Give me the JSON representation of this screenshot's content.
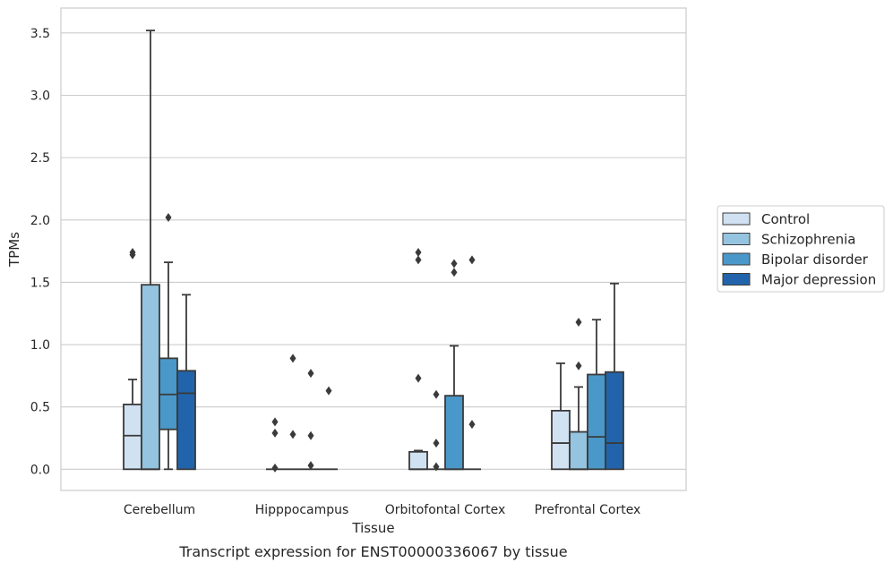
{
  "chart_data": {
    "type": "box",
    "title": "",
    "caption": "Transcript expression for ENST00000336067 by tissue",
    "xlabel": "Tissue",
    "ylabel": "TPMs",
    "ylim": [
      -0.17,
      3.7
    ],
    "yticks": [
      "0.0",
      "0.5",
      "1.0",
      "1.5",
      "2.0",
      "2.5",
      "3.0",
      "3.5"
    ],
    "grid": "horizontal",
    "legend_position": "right",
    "categories": [
      "Cerebellum",
      "Hipppocampus",
      "Orbitofontal Cortex",
      "Prefrontal Cortex"
    ],
    "series": [
      {
        "name": "Control",
        "color": "#d0e1f2",
        "boxes": [
          {
            "whislo": 0.0,
            "q1": 0.0,
            "med": 0.27,
            "q3": 0.52,
            "whishi": 0.72,
            "fliers": [
              1.72,
              1.74
            ]
          },
          {
            "whislo": 0.0,
            "q1": 0.0,
            "med": 0.0,
            "q3": 0.0,
            "whishi": 0.0,
            "fliers": [
              0.38,
              0.29,
              0.01
            ]
          },
          {
            "whislo": 0.0,
            "q1": 0.0,
            "med": 0.0,
            "q3": 0.14,
            "whishi": 0.15,
            "fliers": [
              1.74,
              1.68,
              0.73
            ]
          },
          {
            "whislo": 0.0,
            "q1": 0.0,
            "med": 0.21,
            "q3": 0.47,
            "whishi": 0.85,
            "fliers": []
          }
        ]
      },
      {
        "name": "Schizophrenia",
        "color": "#94c4df",
        "boxes": [
          {
            "whislo": 0.0,
            "q1": 0.0,
            "med": 0.0,
            "q3": 1.48,
            "whishi": 3.52,
            "fliers": []
          },
          {
            "whislo": 0.0,
            "q1": 0.0,
            "med": 0.0,
            "q3": 0.0,
            "whishi": 0.0,
            "fliers": [
              0.89,
              0.28
            ]
          },
          {
            "whislo": 0.0,
            "q1": 0.0,
            "med": 0.0,
            "q3": 0.0,
            "whishi": 0.0,
            "fliers": [
              0.6,
              0.21,
              0.02
            ]
          },
          {
            "whislo": 0.0,
            "q1": 0.0,
            "med": 0.0,
            "q3": 0.3,
            "whishi": 0.66,
            "fliers": [
              1.18,
              0.83
            ]
          }
        ]
      },
      {
        "name": "Bipolar disorder",
        "color": "#4a98c9",
        "boxes": [
          {
            "whislo": 0.0,
            "q1": 0.32,
            "med": 0.6,
            "q3": 0.89,
            "whishi": 1.66,
            "fliers": [
              2.02
            ]
          },
          {
            "whislo": 0.0,
            "q1": 0.0,
            "med": 0.0,
            "q3": 0.0,
            "whishi": 0.0,
            "fliers": [
              0.77,
              0.27,
              0.03
            ]
          },
          {
            "whislo": 0.0,
            "q1": 0.0,
            "med": 0.0,
            "q3": 0.59,
            "whishi": 0.99,
            "fliers": [
              1.65,
              1.58
            ]
          },
          {
            "whislo": 0.0,
            "q1": 0.0,
            "med": 0.26,
            "q3": 0.76,
            "whishi": 1.2,
            "fliers": []
          }
        ]
      },
      {
        "name": "Major depression",
        "color": "#2264ab",
        "boxes": [
          {
            "whislo": 0.0,
            "q1": 0.0,
            "med": 0.61,
            "q3": 0.79,
            "whishi": 1.4,
            "fliers": []
          },
          {
            "whislo": 0.0,
            "q1": 0.0,
            "med": 0.0,
            "q3": 0.0,
            "whishi": 0.0,
            "fliers": [
              0.63
            ]
          },
          {
            "whislo": 0.0,
            "q1": 0.0,
            "med": 0.0,
            "q3": 0.0,
            "whishi": 0.0,
            "fliers": [
              1.68,
              0.36
            ]
          },
          {
            "whislo": 0.0,
            "q1": 0.0,
            "med": 0.21,
            "q3": 0.78,
            "whishi": 1.49,
            "fliers": []
          }
        ]
      }
    ]
  }
}
